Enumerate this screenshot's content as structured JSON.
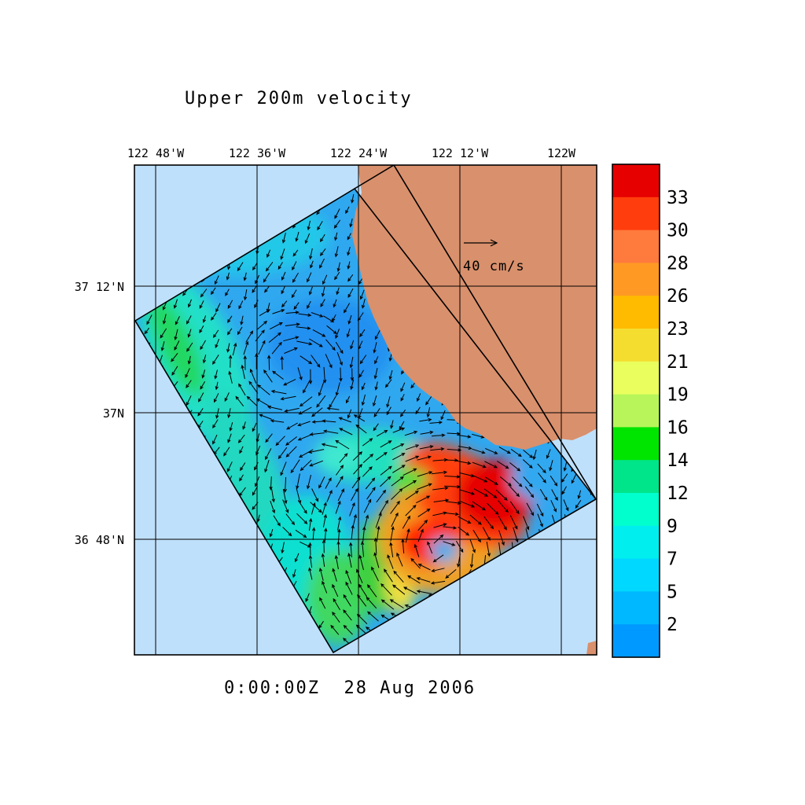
{
  "title": "Upper 200m velocity",
  "timestamp": "0:00:00Z  28 Aug 2006",
  "scale_arrow_label": "40 cm/s",
  "longitude_labels": [
    "122 48'W",
    "122 36'W",
    "122 24'W",
    "122 12'W",
    "122W"
  ],
  "latitude_labels": [
    "37 12'N",
    "37N",
    "36 48'N"
  ],
  "colorbar": {
    "labels": [
      "33",
      "30",
      "28",
      "26",
      "23",
      "21",
      "19",
      "16",
      "14",
      "12",
      "9",
      "7",
      "5",
      "2"
    ],
    "colors": [
      "#e60000",
      "#ff3d0d",
      "#ff7a3d",
      "#ff9924",
      "#ffbb00",
      "#f5dd30",
      "#eaff5e",
      "#b8f55a",
      "#00e500",
      "#00e58a",
      "#00ffcc",
      "#00eeee",
      "#00d8ff",
      "#00b8ff",
      "#0099ff"
    ]
  },
  "colors": {
    "ocean": "#bfe0fa",
    "land": "#d9906c",
    "frame": "#000000"
  }
}
